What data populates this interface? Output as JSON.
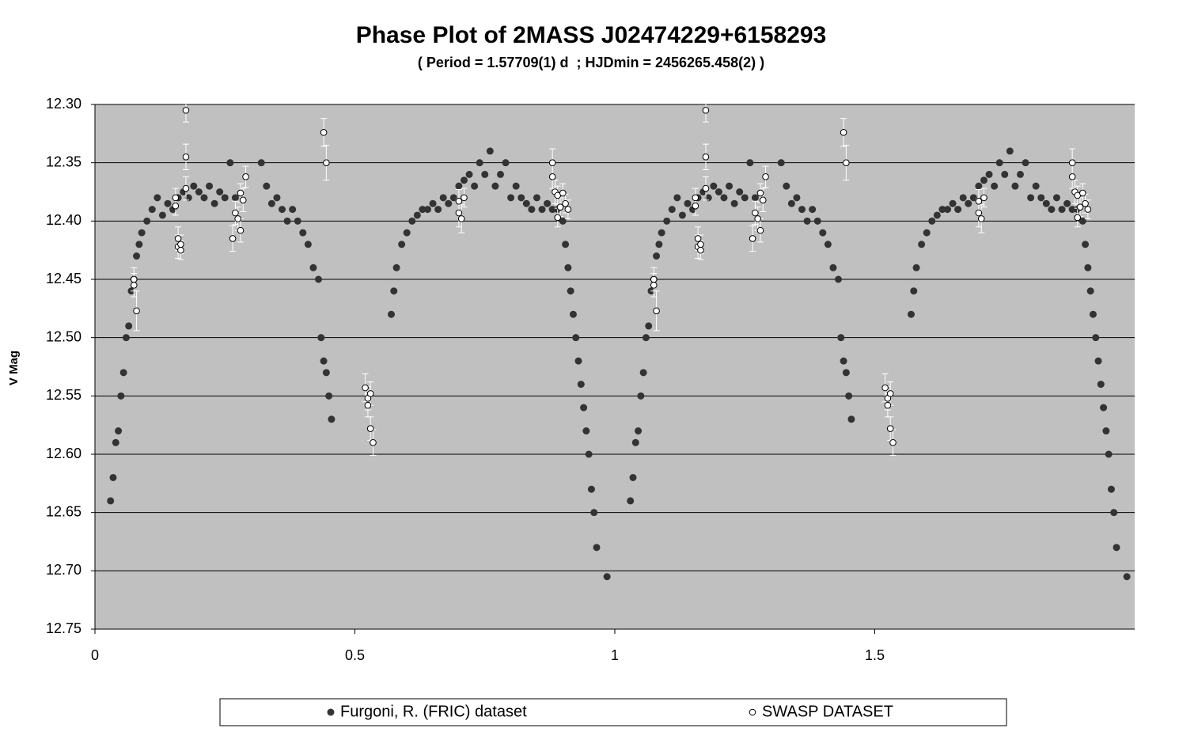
{
  "chart_data": {
    "type": "scatter",
    "title": "Phase Plot of 2MASS J02474229+6158293",
    "subtitle": "( Period = 1.57709(1) d  ; HJDmin = 2456265.458(2) )",
    "y_label": "V Mag",
    "xlim": [
      0,
      2
    ],
    "xticks": [
      0,
      0.5,
      1,
      1.5
    ],
    "ylim": [
      12.3,
      12.75
    ],
    "y_inverted": true,
    "yticks": [
      {
        "value": 12.3,
        "label": "12.30"
      },
      {
        "value": 12.35,
        "label": "12.35"
      },
      {
        "value": 12.4,
        "label": "12.40"
      },
      {
        "value": 12.45,
        "label": "12.45"
      },
      {
        "value": 12.5,
        "label": "12.50"
      },
      {
        "value": 12.55,
        "label": "12.55"
      },
      {
        "value": 12.6,
        "label": "12.60"
      },
      {
        "value": 12.65,
        "label": "12.65"
      },
      {
        "value": 12.7,
        "label": "12.70"
      },
      {
        "value": 12.75,
        "label": "12.75"
      }
    ],
    "grid": true,
    "legend": "bottom",
    "series": [
      {
        "name": "Furgoni, R. (FRIC) dataset",
        "color": "#333333",
        "x": [
          0.03,
          0.035,
          0.04,
          0.045,
          0.05,
          0.055,
          0.06,
          0.065,
          0.07,
          0.075,
          0.08,
          0.085,
          0.09,
          0.1,
          0.11,
          0.12,
          0.13,
          0.14,
          0.15,
          0.16,
          0.17,
          0.18,
          0.19,
          0.2,
          0.21,
          0.22,
          0.23,
          0.24,
          0.25,
          0.26,
          0.27,
          0.32,
          0.33,
          0.34,
          0.35,
          0.36,
          0.37,
          0.38,
          0.39,
          0.4,
          0.41,
          0.42,
          0.43,
          0.435,
          0.44,
          0.445,
          0.45,
          0.455,
          0.57,
          0.575,
          0.58,
          0.59,
          0.6,
          0.61,
          0.62,
          0.63,
          0.64,
          0.65,
          0.66,
          0.67,
          0.68,
          0.69,
          0.7,
          0.71,
          0.72,
          0.73,
          0.74,
          0.75,
          0.76,
          0.77,
          0.78,
          0.79,
          0.8,
          0.81,
          0.82,
          0.83,
          0.84,
          0.85,
          0.86,
          0.87,
          0.88,
          0.89,
          0.9,
          0.905,
          0.91,
          0.915,
          0.92,
          0.925,
          0.93,
          0.935,
          0.94,
          0.945,
          0.95,
          0.955,
          0.96,
          0.965,
          0.985,
          1.03,
          1.035,
          1.04,
          1.045,
          1.05,
          1.055,
          1.06,
          1.065,
          1.07,
          1.075,
          1.08,
          1.085,
          1.09,
          1.1,
          1.11,
          1.12,
          1.13,
          1.14,
          1.15,
          1.16,
          1.17,
          1.18,
          1.19,
          1.2,
          1.21,
          1.22,
          1.23,
          1.24,
          1.25,
          1.26,
          1.27,
          1.32,
          1.33,
          1.34,
          1.35,
          1.36,
          1.37,
          1.38,
          1.39,
          1.4,
          1.41,
          1.42,
          1.43,
          1.435,
          1.44,
          1.445,
          1.45,
          1.455,
          1.57,
          1.575,
          1.58,
          1.59,
          1.6,
          1.61,
          1.62,
          1.63,
          1.64,
          1.65,
          1.66,
          1.67,
          1.68,
          1.69,
          1.7,
          1.71,
          1.72,
          1.73,
          1.74,
          1.75,
          1.76,
          1.77,
          1.78,
          1.79,
          1.8,
          1.81,
          1.82,
          1.83,
          1.84,
          1.85,
          1.86,
          1.87,
          1.88,
          1.89,
          1.9,
          1.905,
          1.91,
          1.915,
          1.92,
          1.925,
          1.93,
          1.935,
          1.94,
          1.945,
          1.95,
          1.955,
          1.96,
          1.965,
          1.985
        ],
        "values": [
          12.64,
          12.62,
          12.59,
          12.58,
          12.55,
          12.53,
          12.5,
          12.49,
          12.46,
          12.45,
          12.43,
          12.42,
          12.41,
          12.4,
          12.39,
          12.38,
          12.395,
          12.385,
          12.39,
          12.38,
          12.375,
          12.38,
          12.37,
          12.375,
          12.38,
          12.37,
          12.385,
          12.375,
          12.38,
          12.35,
          12.38,
          12.35,
          12.37,
          12.385,
          12.38,
          12.39,
          12.4,
          12.39,
          12.4,
          12.41,
          12.42,
          12.44,
          12.45,
          12.5,
          12.52,
          12.53,
          12.55,
          12.57,
          12.48,
          12.46,
          12.44,
          12.42,
          12.41,
          12.4,
          12.395,
          12.39,
          12.39,
          12.385,
          12.39,
          12.38,
          12.385,
          12.38,
          12.37,
          12.365,
          12.36,
          12.37,
          12.35,
          12.36,
          12.34,
          12.37,
          12.36,
          12.35,
          12.38,
          12.37,
          12.38,
          12.385,
          12.39,
          12.38,
          12.39,
          12.385,
          12.39,
          12.39,
          12.4,
          12.42,
          12.44,
          12.46,
          12.48,
          12.5,
          12.52,
          12.54,
          12.56,
          12.58,
          12.6,
          12.63,
          12.65,
          12.68,
          12.705,
          12.64,
          12.62,
          12.59,
          12.58,
          12.55,
          12.53,
          12.5,
          12.49,
          12.46,
          12.45,
          12.43,
          12.42,
          12.41,
          12.4,
          12.39,
          12.38,
          12.395,
          12.385,
          12.39,
          12.38,
          12.375,
          12.38,
          12.37,
          12.375,
          12.38,
          12.37,
          12.385,
          12.375,
          12.38,
          12.35,
          12.38,
          12.35,
          12.37,
          12.385,
          12.38,
          12.39,
          12.4,
          12.39,
          12.4,
          12.41,
          12.42,
          12.44,
          12.45,
          12.5,
          12.52,
          12.53,
          12.55,
          12.57,
          12.48,
          12.46,
          12.44,
          12.42,
          12.41,
          12.4,
          12.395,
          12.39,
          12.39,
          12.385,
          12.39,
          12.38,
          12.385,
          12.38,
          12.37,
          12.365,
          12.36,
          12.37,
          12.35,
          12.36,
          12.34,
          12.37,
          12.36,
          12.35,
          12.38,
          12.37,
          12.38,
          12.385,
          12.39,
          12.38,
          12.39,
          12.385,
          12.39,
          12.39,
          12.4,
          12.42,
          12.44,
          12.46,
          12.48,
          12.5,
          12.52,
          12.54,
          12.56,
          12.58,
          12.6,
          12.63,
          12.65,
          12.68,
          12.705
        ]
      },
      {
        "name": "SWASP DATASET",
        "color": "#ffffff",
        "edge_color": "#000000",
        "x": [
          0.075,
          0.075,
          0.08,
          0.155,
          0.155,
          0.16,
          0.16,
          0.165,
          0.165,
          0.175,
          0.175,
          0.175,
          0.265,
          0.27,
          0.275,
          0.28,
          0.28,
          0.285,
          0.29,
          0.44,
          0.445,
          0.52,
          0.525,
          0.525,
          0.53,
          0.53,
          0.535,
          0.7,
          0.7,
          0.705,
          0.71,
          0.88,
          0.88,
          0.885,
          0.89,
          0.89,
          0.895,
          0.9,
          0.905,
          0.91,
          1.075,
          1.075,
          1.08,
          1.155,
          1.155,
          1.16,
          1.16,
          1.165,
          1.165,
          1.175,
          1.175,
          1.175,
          1.265,
          1.27,
          1.275,
          1.28,
          1.28,
          1.285,
          1.29,
          1.44,
          1.445,
          1.52,
          1.525,
          1.525,
          1.53,
          1.53,
          1.535,
          1.7,
          1.7,
          1.705,
          1.71,
          1.88,
          1.88,
          1.885,
          1.89,
          1.89,
          1.895,
          1.9,
          1.905,
          1.91
        ],
        "values": [
          12.45,
          12.455,
          12.477,
          12.38,
          12.387,
          12.415,
          12.422,
          12.425,
          12.42,
          12.305,
          12.345,
          12.372,
          12.415,
          12.393,
          12.398,
          12.408,
          12.376,
          12.382,
          12.362,
          12.324,
          12.35,
          12.543,
          12.552,
          12.558,
          12.548,
          12.578,
          12.59,
          12.383,
          12.393,
          12.398,
          12.38,
          12.35,
          12.362,
          12.375,
          12.378,
          12.397,
          12.388,
          12.376,
          12.385,
          12.39,
          12.45,
          12.455,
          12.477,
          12.38,
          12.387,
          12.415,
          12.422,
          12.425,
          12.42,
          12.305,
          12.345,
          12.372,
          12.415,
          12.393,
          12.398,
          12.408,
          12.376,
          12.382,
          12.362,
          12.324,
          12.35,
          12.543,
          12.552,
          12.558,
          12.548,
          12.578,
          12.59,
          12.383,
          12.393,
          12.398,
          12.38,
          12.35,
          12.362,
          12.375,
          12.378,
          12.397,
          12.388,
          12.376,
          12.385,
          12.39
        ],
        "errors": [
          0.01,
          0.01,
          0.017,
          0.008,
          0.008,
          0.01,
          0.01,
          0.008,
          0.008,
          0.01,
          0.011,
          0.01,
          0.011,
          0.01,
          0.01,
          0.01,
          0.008,
          0.01,
          0.009,
          0.012,
          0.015,
          0.012,
          0.01,
          0.01,
          0.01,
          0.01,
          0.011,
          0.01,
          0.012,
          0.012,
          0.008,
          0.012,
          0.01,
          0.01,
          0.008,
          0.008,
          0.008,
          0.008,
          0.008,
          0.008,
          0.01,
          0.01,
          0.017,
          0.008,
          0.008,
          0.01,
          0.01,
          0.008,
          0.008,
          0.01,
          0.011,
          0.01,
          0.011,
          0.01,
          0.01,
          0.01,
          0.008,
          0.01,
          0.009,
          0.012,
          0.015,
          0.012,
          0.01,
          0.01,
          0.01,
          0.01,
          0.011,
          0.01,
          0.012,
          0.012,
          0.008,
          0.012,
          0.01,
          0.01,
          0.008,
          0.008,
          0.008,
          0.008,
          0.008,
          0.008
        ]
      }
    ]
  }
}
